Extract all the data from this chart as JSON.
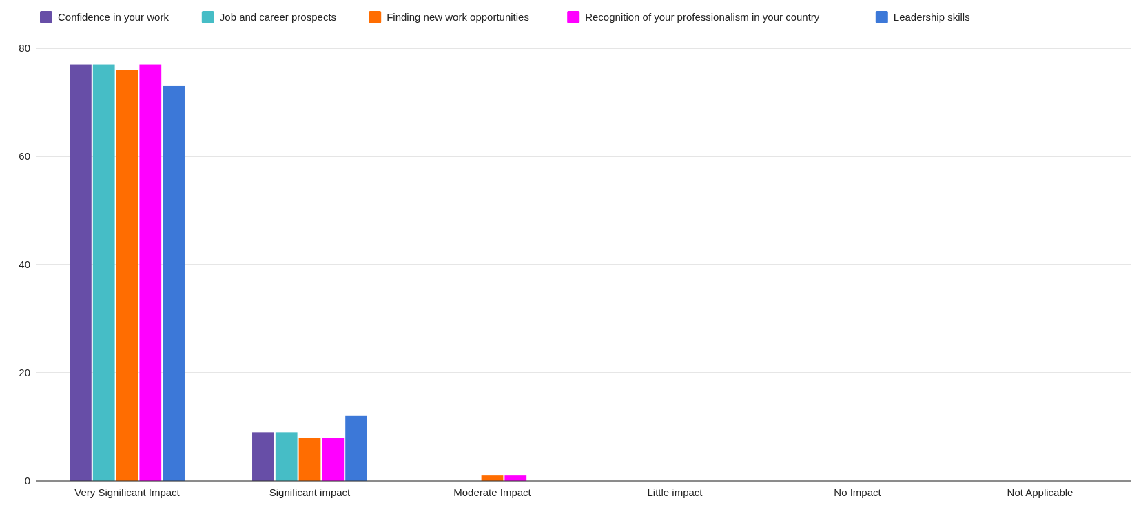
{
  "chart_data": {
    "type": "bar",
    "categories": [
      "Very Significant Impact",
      "Significant impact",
      "Moderate Impact",
      "Little impact",
      "No Impact",
      "Not Applicable"
    ],
    "series": [
      {
        "name": "Confidence in your work",
        "color": "#674ea7",
        "values": [
          77,
          9,
          0,
          0,
          0,
          0
        ]
      },
      {
        "name": "Job and career prospects",
        "color": "#46bdc6",
        "values": [
          77,
          9,
          0,
          0,
          0,
          0
        ]
      },
      {
        "name": "Finding new work opportunities",
        "color": "#ff6d01",
        "values": [
          76,
          8,
          1,
          0,
          0,
          0
        ]
      },
      {
        "name": "Recognition of your professionalism in your country",
        "color": "#ff00ff",
        "values": [
          77,
          8,
          1,
          0,
          0,
          0
        ]
      },
      {
        "name": "Leadership skills",
        "color": "#3c78d8",
        "values": [
          73,
          12,
          0,
          0,
          0,
          0
        ]
      }
    ],
    "ylim": [
      0,
      80
    ],
    "yticks": [
      0,
      20,
      40,
      60,
      80
    ],
    "grid": "y",
    "legend": "top"
  }
}
